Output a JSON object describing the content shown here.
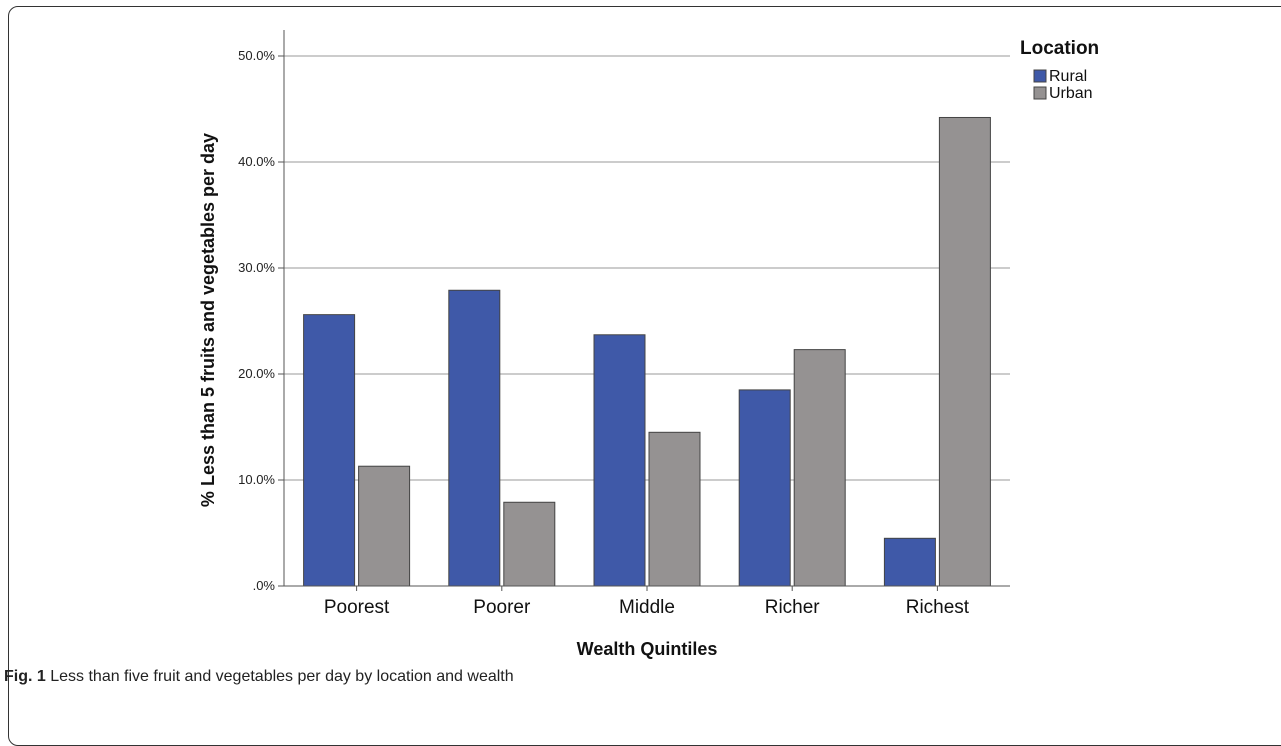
{
  "caption": {
    "label": "Fig. 1",
    "text": " Less than five fruit and vegetables per day by location and wealth"
  },
  "chart_data": {
    "type": "bar",
    "title": "",
    "xlabel": "Wealth Quintiles",
    "ylabel": "% Less than 5 fruits and vegetables per day",
    "categories": [
      "Poorest",
      "Poorer",
      "Middle",
      "Richer",
      "Richest"
    ],
    "series": [
      {
        "name": "Rural",
        "color": "#3f59a8",
        "values": [
          25.6,
          27.9,
          23.7,
          18.5,
          4.5
        ]
      },
      {
        "name": "Urban",
        "color": "#959292",
        "values": [
          11.3,
          7.9,
          14.5,
          22.3,
          44.2
        ]
      }
    ],
    "ylim": [
      0,
      50
    ],
    "yticks": [
      ".0%",
      "10.0%",
      "20.0%",
      "30.0%",
      "40.0%",
      "50.0%"
    ],
    "grid": true,
    "legend": {
      "title": "Location",
      "position": "top-right"
    }
  }
}
